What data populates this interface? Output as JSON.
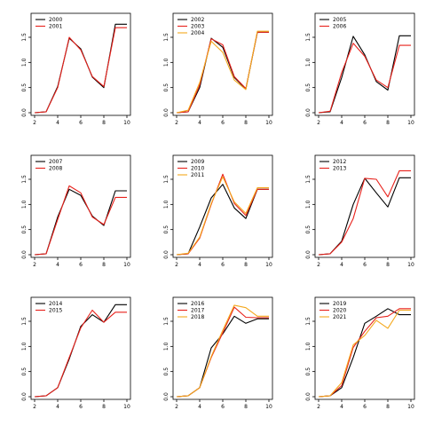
{
  "colors": {
    "black": "#000000",
    "red": "#e8211b",
    "orange": "#f4a81d"
  },
  "chart_data": [
    {
      "type": "line",
      "x": [
        2,
        3,
        4,
        5,
        6,
        7,
        8,
        9,
        10
      ],
      "xlim": [
        2,
        10
      ],
      "ylim": [
        0,
        1.8
      ],
      "xticks": [
        "2",
        "4",
        "6",
        "8",
        "10"
      ],
      "yticks": [
        "0.0",
        "0.5",
        "1.0",
        "1.5"
      ],
      "legend": "top-left",
      "series": [
        {
          "name": "2000",
          "color": "#000000",
          "values": [
            0,
            0.02,
            0.52,
            1.48,
            1.27,
            0.71,
            0.5,
            1.76,
            1.76
          ]
        },
        {
          "name": "2001",
          "color": "#e8211b",
          "values": [
            0,
            0.02,
            0.5,
            1.5,
            1.25,
            0.72,
            0.52,
            1.69,
            1.69
          ]
        }
      ]
    },
    {
      "type": "line",
      "x": [
        2,
        3,
        4,
        5,
        6,
        7,
        8,
        9,
        10
      ],
      "xlim": [
        2,
        10
      ],
      "ylim": [
        0,
        1.8
      ],
      "xticks": [
        "2",
        "4",
        "6",
        "8",
        "10"
      ],
      "yticks": [
        "0.0",
        "0.5",
        "1.0",
        "1.5"
      ],
      "legend": "top-left",
      "series": [
        {
          "name": "2002",
          "color": "#000000",
          "values": [
            0,
            0.02,
            0.5,
            1.48,
            1.3,
            0.7,
            0.47,
            1.6,
            1.6
          ]
        },
        {
          "name": "2003",
          "color": "#e8211b",
          "values": [
            0,
            0.02,
            0.55,
            1.47,
            1.35,
            0.72,
            0.48,
            1.6,
            1.6
          ]
        },
        {
          "name": "2004",
          "color": "#f4a81d",
          "values": [
            0,
            0.05,
            0.6,
            1.42,
            1.2,
            0.65,
            0.46,
            1.62,
            1.62
          ]
        }
      ]
    },
    {
      "type": "line",
      "x": [
        2,
        3,
        4,
        5,
        6,
        7,
        8,
        9,
        10
      ],
      "xlim": [
        2,
        10
      ],
      "ylim": [
        0,
        1.8
      ],
      "xticks": [
        "2",
        "4",
        "6",
        "8",
        "10"
      ],
      "yticks": [
        "0.0",
        "0.5",
        "1.0",
        "1.5"
      ],
      "legend": "top-left",
      "series": [
        {
          "name": "2005",
          "color": "#000000",
          "values": [
            0,
            0.02,
            0.7,
            1.52,
            1.15,
            0.62,
            0.45,
            1.53,
            1.53
          ]
        },
        {
          "name": "2006",
          "color": "#e8211b",
          "values": [
            0,
            0.03,
            0.8,
            1.38,
            1.12,
            0.65,
            0.5,
            1.34,
            1.34
          ]
        }
      ]
    },
    {
      "type": "line",
      "x": [
        2,
        3,
        4,
        5,
        6,
        7,
        8,
        9,
        10
      ],
      "xlim": [
        2,
        10
      ],
      "ylim": [
        0,
        1.8
      ],
      "xticks": [
        "2",
        "4",
        "6",
        "8",
        "10"
      ],
      "yticks": [
        "0.0",
        "0.5",
        "1.0",
        "1.5"
      ],
      "legend": "top-left",
      "series": [
        {
          "name": "2007",
          "color": "#000000",
          "values": [
            0,
            0.02,
            0.75,
            1.3,
            1.18,
            0.77,
            0.58,
            1.27,
            1.27
          ]
        },
        {
          "name": "2008",
          "color": "#e8211b",
          "values": [
            0,
            0.02,
            0.7,
            1.37,
            1.23,
            0.75,
            0.6,
            1.14,
            1.14
          ]
        }
      ]
    },
    {
      "type": "line",
      "x": [
        2,
        3,
        4,
        5,
        6,
        7,
        8,
        9,
        10
      ],
      "xlim": [
        2,
        10
      ],
      "ylim": [
        0,
        1.8
      ],
      "xticks": [
        "2",
        "4",
        "6",
        "8",
        "10"
      ],
      "yticks": [
        "0.0",
        "0.5",
        "1.0",
        "1.5"
      ],
      "legend": "top-left",
      "series": [
        {
          "name": "2009",
          "color": "#000000",
          "values": [
            0,
            0.02,
            0.55,
            1.13,
            1.4,
            0.93,
            0.72,
            1.3,
            1.3
          ]
        },
        {
          "name": "2010",
          "color": "#e8211b",
          "values": [
            0,
            0.02,
            0.33,
            1.0,
            1.6,
            1.02,
            0.78,
            1.3,
            1.3
          ]
        },
        {
          "name": "2011",
          "color": "#f4a81d",
          "values": [
            0,
            0.03,
            0.35,
            1.02,
            1.55,
            1.05,
            0.82,
            1.33,
            1.33
          ]
        }
      ]
    },
    {
      "type": "line",
      "x": [
        2,
        3,
        4,
        5,
        6,
        7,
        8,
        9,
        10
      ],
      "xlim": [
        2,
        10
      ],
      "ylim": [
        0,
        1.8
      ],
      "xticks": [
        "2",
        "4",
        "6",
        "8",
        "10"
      ],
      "yticks": [
        "0.0",
        "0.5",
        "1.0",
        "1.5"
      ],
      "legend": "top-left",
      "series": [
        {
          "name": "2012",
          "color": "#000000",
          "values": [
            0,
            0.02,
            0.27,
            1.0,
            1.52,
            1.23,
            0.95,
            1.53,
            1.53
          ]
        },
        {
          "name": "2013",
          "color": "#e8211b",
          "values": [
            0,
            0.02,
            0.25,
            0.72,
            1.52,
            1.5,
            1.15,
            1.67,
            1.67
          ]
        }
      ]
    },
    {
      "type": "line",
      "x": [
        2,
        3,
        4,
        5,
        6,
        7,
        8,
        9,
        10
      ],
      "xlim": [
        2,
        10
      ],
      "ylim": [
        0,
        1.8
      ],
      "xticks": [
        "2",
        "4",
        "6",
        "8",
        "10"
      ],
      "yticks": [
        "0.0",
        "0.5",
        "1.0",
        "1.5"
      ],
      "legend": "top-left",
      "series": [
        {
          "name": "2014",
          "color": "#000000",
          "values": [
            0,
            0.02,
            0.18,
            0.75,
            1.4,
            1.63,
            1.48,
            1.83,
            1.83
          ]
        },
        {
          "name": "2015",
          "color": "#e8211b",
          "values": [
            0,
            0.02,
            0.18,
            0.78,
            1.37,
            1.72,
            1.48,
            1.68,
            1.68
          ]
        }
      ]
    },
    {
      "type": "line",
      "x": [
        2,
        3,
        4,
        5,
        6,
        7,
        8,
        9,
        10
      ],
      "xlim": [
        2,
        10
      ],
      "ylim": [
        0,
        1.8
      ],
      "xticks": [
        "2",
        "4",
        "6",
        "8",
        "10"
      ],
      "yticks": [
        "0.0",
        "0.5",
        "1.0",
        "1.5"
      ],
      "legend": "top-left",
      "series": [
        {
          "name": "2016",
          "color": "#000000",
          "values": [
            0,
            0.02,
            0.18,
            0.97,
            1.25,
            1.6,
            1.46,
            1.55,
            1.55
          ]
        },
        {
          "name": "2017",
          "color": "#e8211b",
          "values": [
            0,
            0.02,
            0.18,
            0.78,
            1.27,
            1.78,
            1.58,
            1.57,
            1.57
          ]
        },
        {
          "name": "2018",
          "color": "#f4a81d",
          "values": [
            0,
            0.02,
            0.18,
            0.8,
            1.32,
            1.82,
            1.77,
            1.6,
            1.6
          ]
        }
      ]
    },
    {
      "type": "line",
      "x": [
        2,
        3,
        4,
        5,
        6,
        7,
        8,
        9,
        10
      ],
      "xlim": [
        2,
        10
      ],
      "ylim": [
        0,
        1.8
      ],
      "xticks": [
        "2",
        "4",
        "6",
        "8",
        "10"
      ],
      "yticks": [
        "0.0",
        "0.5",
        "1.0",
        "1.5"
      ],
      "legend": "top-left",
      "series": [
        {
          "name": "2019",
          "color": "#000000",
          "values": [
            0,
            0.02,
            0.18,
            0.78,
            1.46,
            1.6,
            1.75,
            1.63,
            1.63
          ]
        },
        {
          "name": "2020",
          "color": "#e8211b",
          "values": [
            0,
            0.02,
            0.22,
            0.98,
            1.3,
            1.57,
            1.6,
            1.75,
            1.75
          ]
        },
        {
          "name": "2021",
          "color": "#f4a81d",
          "values": [
            0,
            0.02,
            0.28,
            1.03,
            1.22,
            1.52,
            1.36,
            1.72,
            1.72
          ]
        }
      ]
    }
  ]
}
